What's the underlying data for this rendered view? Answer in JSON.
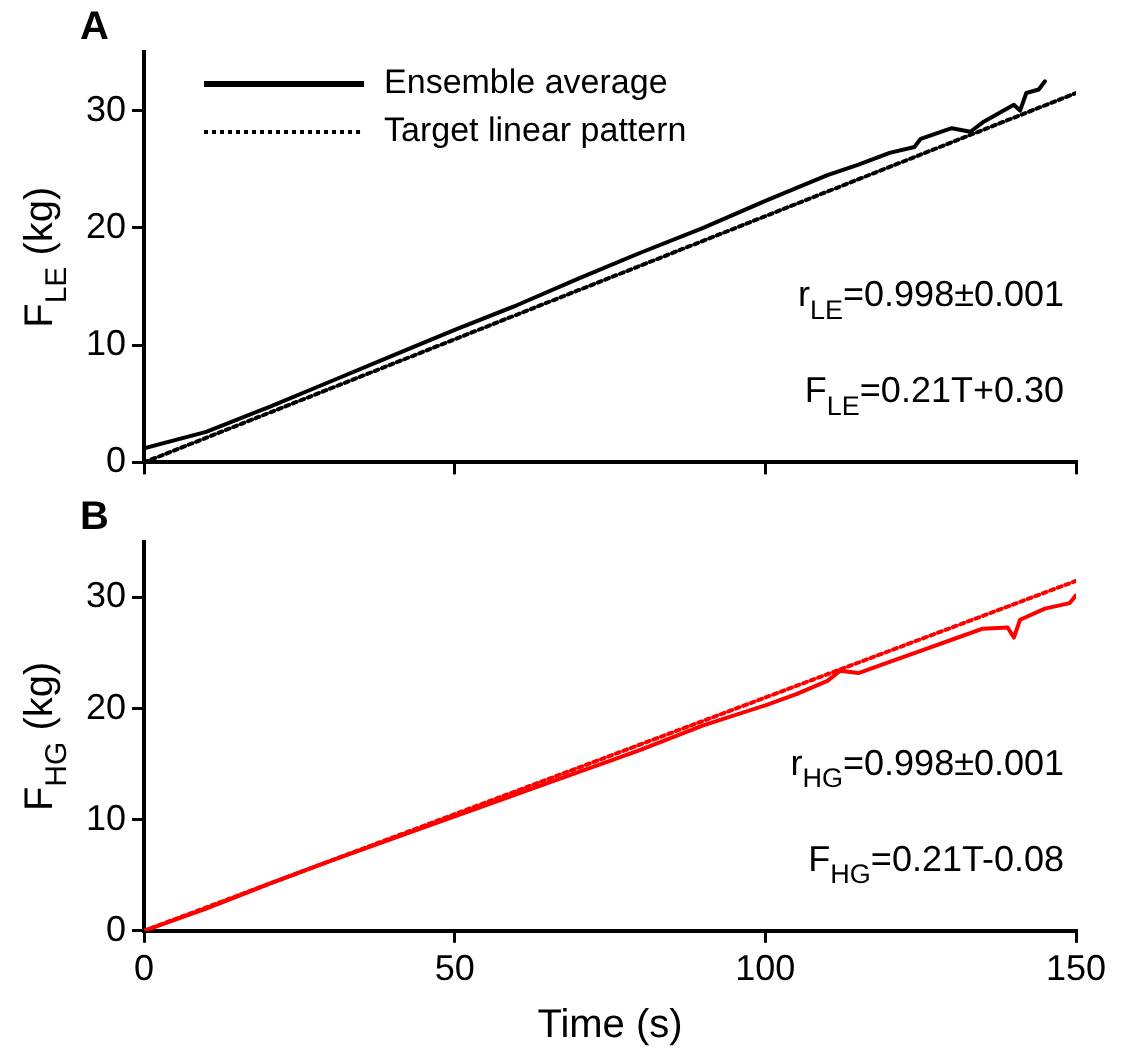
{
  "chart_data": [
    {
      "type": "line",
      "title": "A",
      "ylabel": "F$_{LE}$ (kg)",
      "xlim": [
        0,
        150
      ],
      "ylim": [
        0,
        35
      ],
      "xticks": [
        0,
        50,
        100,
        150
      ],
      "yticks": [
        0,
        10,
        20,
        30
      ],
      "tick_labels": "y",
      "grid": false,
      "legend": "top left",
      "marker": "none",
      "annotations": [
        "r$_{LE}$=0.998±0.001",
        "F$_{LE}$=0.21T+0.30"
      ],
      "series": [
        {
          "name": "Ensemble average",
          "color": "#000000",
          "line_style": "solid",
          "x": [
            0,
            10,
            20,
            30,
            40,
            50,
            60,
            70,
            80,
            90,
            100,
            110,
            115,
            120,
            124,
            125,
            130,
            133,
            135,
            140,
            141,
            142,
            144,
            145
          ],
          "values": [
            1.2,
            2.6,
            4.7,
            6.9,
            9.1,
            11.3,
            13.4,
            15.7,
            17.9,
            20.0,
            22.3,
            24.5,
            25.4,
            26.4,
            26.9,
            27.6,
            28.5,
            28.2,
            29.0,
            30.5,
            30.0,
            31.5,
            31.8,
            32.5
          ]
        },
        {
          "name": "Target linear pattern",
          "color": "#000000",
          "line_style": "dotted",
          "x": [
            0,
            150
          ],
          "values": [
            0,
            31.5
          ]
        }
      ]
    },
    {
      "type": "line",
      "title": "B",
      "xlabel": "Time (s)",
      "ylabel": "F$_{HG}$ (kg)",
      "xlim": [
        0,
        150
      ],
      "ylim": [
        0,
        35
      ],
      "xticks": [
        0,
        50,
        100,
        150
      ],
      "yticks": [
        0,
        10,
        20,
        30
      ],
      "grid": false,
      "marker": "none",
      "annotations": [
        "r$_{HG}$=0.998±0.001",
        "F$_{HG}$=0.21T-0.08"
      ],
      "series": [
        {
          "color": "#ff0000",
          "line_style": "solid",
          "x": [
            0,
            10,
            20,
            30,
            40,
            50,
            60,
            70,
            80,
            90,
            100,
            105,
            110,
            112,
            115,
            120,
            125,
            130,
            135,
            139,
            140,
            141,
            145,
            149,
            150
          ],
          "values": [
            0,
            2,
            4.2,
            6.3,
            8.3,
            10.3,
            12.3,
            14.3,
            16.3,
            18.5,
            20.3,
            21.3,
            22.5,
            23.4,
            23.2,
            24.2,
            25.2,
            26.2,
            27.2,
            27.3,
            26.4,
            28.0,
            29.0,
            29.5,
            30.2
          ]
        },
        {
          "color": "#ff0000",
          "line_style": "dotted",
          "x": [
            0,
            150
          ],
          "values": [
            0,
            31.5
          ]
        }
      ]
    }
  ]
}
